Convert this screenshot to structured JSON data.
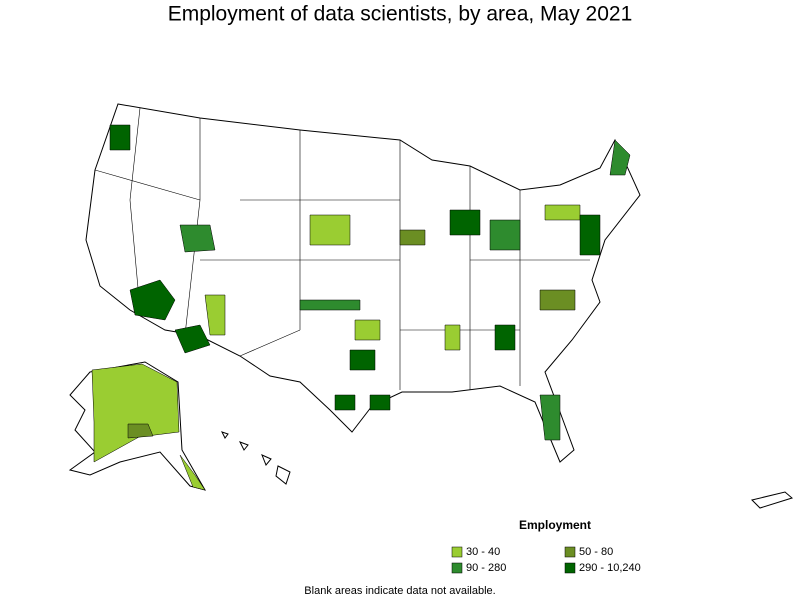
{
  "title": "Employment of data scientists, by area, May 2021",
  "legend": {
    "title": "Employment",
    "items": [
      {
        "label": "30 - 40",
        "color": "#9acd32"
      },
      {
        "label": "50 - 80",
        "color": "#6b8e23"
      },
      {
        "label": "90 - 280",
        "color": "#2e8b2e"
      },
      {
        "label": "290 - 10,240",
        "color": "#006400"
      }
    ]
  },
  "footnote": "Blank areas indicate data not available."
}
